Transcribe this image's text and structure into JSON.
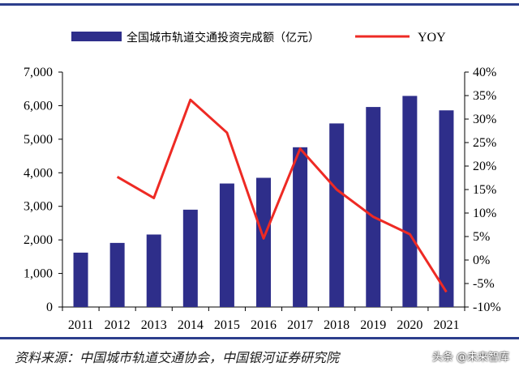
{
  "chart_data": {
    "type": "bar+line",
    "categories": [
      "2011",
      "2012",
      "2013",
      "2014",
      "2015",
      "2016",
      "2017",
      "2018",
      "2019",
      "2020",
      "2021"
    ],
    "series": [
      {
        "name": "全国城市轨道交通投资完成额（亿元）",
        "type": "bar",
        "axis": "left",
        "values": [
          1620,
          1910,
          2160,
          2900,
          3680,
          3850,
          4760,
          5470,
          5960,
          6290,
          5860
        ]
      },
      {
        "name": "YOY",
        "type": "line",
        "axis": "right",
        "values": [
          null,
          17.7,
          13.2,
          34.1,
          27.1,
          4.6,
          23.7,
          15.0,
          9.2,
          5.5,
          -6.8
        ]
      }
    ],
    "y_left": {
      "min": 0,
      "max": 7000,
      "ticks": [
        "0",
        "1,000",
        "2,000",
        "3,000",
        "4,000",
        "5,000",
        "6,000",
        "7,000"
      ]
    },
    "y_right": {
      "min": -10,
      "max": 40,
      "ticks": [
        "-10%",
        "-5%",
        "0%",
        "5%",
        "10%",
        "15%",
        "20%",
        "25%",
        "30%",
        "35%",
        "40%"
      ]
    },
    "colors": {
      "bar": "#2e2e8a",
      "line": "#ee2a24",
      "rule": "#2c3e8c"
    },
    "grid": false,
    "legend_position": "top"
  },
  "source_note": "资料来源：中国城市轨道交通协会，中国银河证券研究院",
  "watermark": "头条 @未来智库"
}
